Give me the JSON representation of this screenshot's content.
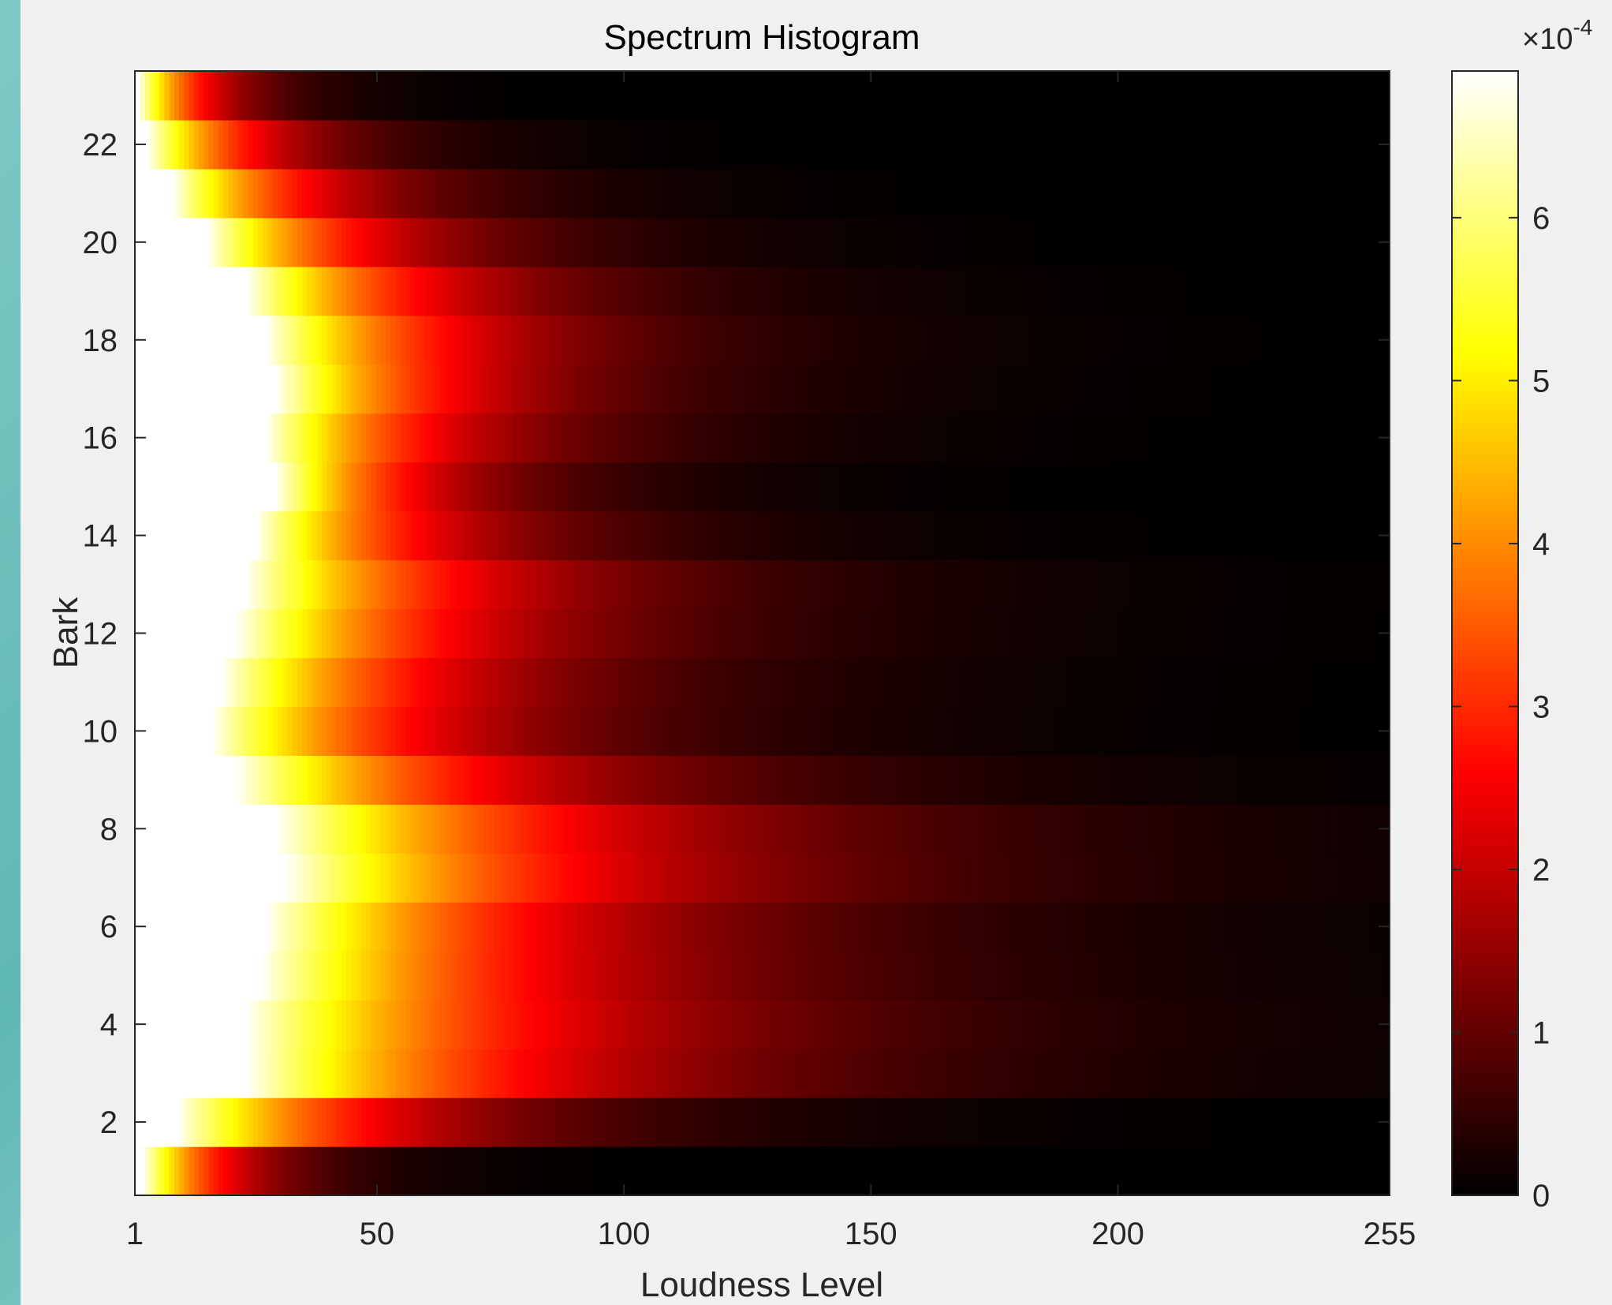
{
  "chart_data": {
    "type": "heatmap",
    "title": "Spectrum Histogram",
    "xlabel": "Loudness Level",
    "ylabel": "Bark",
    "x_range": [
      1,
      255
    ],
    "y_range": [
      1,
      23
    ],
    "x_ticks": [
      "1",
      "50",
      "100",
      "150",
      "200",
      "255"
    ],
    "y_ticks": [
      "2",
      "4",
      "6",
      "8",
      "10",
      "12",
      "14",
      "16",
      "18",
      "20",
      "22"
    ],
    "colormap": "hot",
    "colorbar": {
      "exponent_label": "×10",
      "exponent_power": "-4",
      "ticks": [
        "0",
        "1",
        "2",
        "3",
        "4",
        "5",
        "6"
      ],
      "range": [
        0,
        6.9
      ]
    },
    "rows": [
      {
        "bark": 1,
        "white_end": 1,
        "decay": 17
      },
      {
        "bark": 2,
        "white_end": 8,
        "decay": 40
      },
      {
        "bark": 3,
        "white_end": 22,
        "decay": 58
      },
      {
        "bark": 4,
        "white_end": 22,
        "decay": 60
      },
      {
        "bark": 5,
        "white_end": 25,
        "decay": 56
      },
      {
        "bark": 6,
        "white_end": 26,
        "decay": 55
      },
      {
        "bark": 7,
        "white_end": 30,
        "decay": 60
      },
      {
        "bark": 8,
        "white_end": 28,
        "decay": 60
      },
      {
        "bark": 9,
        "white_end": 20,
        "decay": 50
      },
      {
        "bark": 10,
        "white_end": 15,
        "decay": 42
      },
      {
        "bark": 11,
        "white_end": 17,
        "decay": 42
      },
      {
        "bark": 12,
        "white_end": 20,
        "decay": 44
      },
      {
        "bark": 13,
        "white_end": 22,
        "decay": 44
      },
      {
        "bark": 14,
        "white_end": 24,
        "decay": 34
      },
      {
        "bark": 15,
        "white_end": 28,
        "decay": 28
      },
      {
        "bark": 16,
        "white_end": 26,
        "decay": 34
      },
      {
        "bark": 17,
        "white_end": 28,
        "decay": 36
      },
      {
        "bark": 18,
        "white_end": 26,
        "decay": 38
      },
      {
        "bark": 19,
        "white_end": 22,
        "decay": 36
      },
      {
        "bark": 20,
        "white_end": 14,
        "decay": 32
      },
      {
        "bark": 21,
        "white_end": 7,
        "decay": 28
      },
      {
        "bark": 22,
        "white_end": 2,
        "decay": 22
      },
      {
        "bark": 23,
        "white_end": 0,
        "decay": 14
      }
    ],
    "grid": false
  }
}
